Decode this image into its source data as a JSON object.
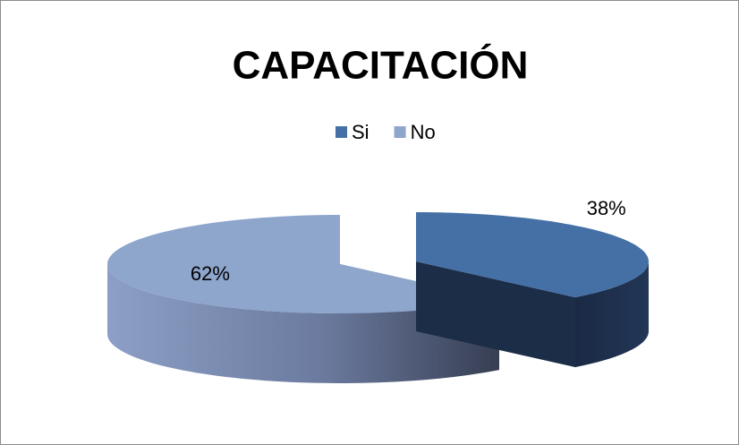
{
  "chart_data": {
    "type": "pie3d",
    "title": "CAPACITACIÓN",
    "categories": [
      "Si",
      "No"
    ],
    "values": [
      38,
      62
    ],
    "value_labels": [
      "38%",
      "62%"
    ],
    "colors": [
      "#4470a6",
      "#8ea5cc"
    ],
    "legend": "top"
  }
}
